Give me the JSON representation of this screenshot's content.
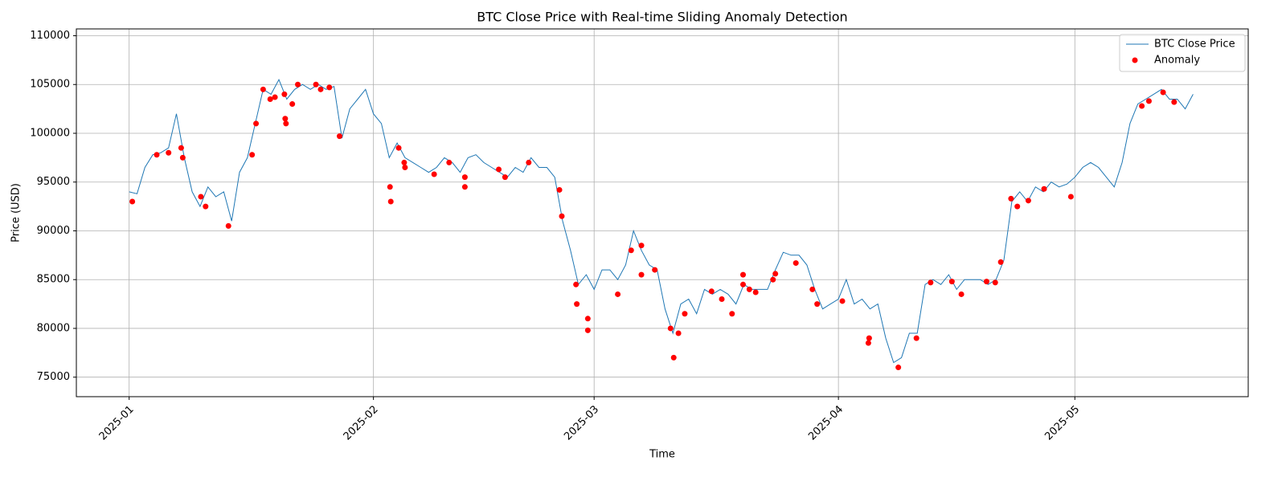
{
  "chart_data": {
    "type": "line",
    "title": "BTC Close Price with Real-time Sliding Anomaly Detection",
    "x_label": "Time",
    "y_label": "Price (USD)",
    "xlim": [
      -6.7,
      142
    ],
    "ylim": [
      73000,
      110700
    ],
    "xticks": [
      {
        "value": 0,
        "label": "2025-01"
      },
      {
        "value": 31,
        "label": "2025-02"
      },
      {
        "value": 59,
        "label": "2025-03"
      },
      {
        "value": 90,
        "label": "2025-04"
      },
      {
        "value": 120,
        "label": "2025-05"
      }
    ],
    "yticks": [
      75000,
      80000,
      85000,
      90000,
      95000,
      100000,
      105000,
      110000
    ],
    "grid": true,
    "legend": "upper right",
    "series": [
      {
        "name": "BTC Close Price",
        "type": "line",
        "color": "#1f77b4",
        "x": [
          0,
          1,
          2,
          3,
          4,
          5,
          6,
          7,
          8,
          9,
          10,
          11,
          12,
          13,
          14,
          15,
          16,
          17,
          18,
          19,
          20,
          21,
          22,
          23,
          24,
          25,
          26,
          27,
          28,
          29,
          30,
          31,
          32,
          33,
          34,
          35,
          36,
          37,
          38,
          39,
          40,
          41,
          42,
          43,
          44,
          45,
          46,
          47,
          48,
          49,
          50,
          51,
          52,
          53,
          54,
          55,
          56,
          57,
          58,
          59,
          60,
          61,
          62,
          63,
          64,
          65,
          66,
          67,
          68,
          69,
          70,
          71,
          72,
          73,
          74,
          75,
          76,
          77,
          78,
          79,
          80,
          81,
          82,
          83,
          84,
          85,
          86,
          87,
          88,
          89,
          90,
          91,
          92,
          93,
          94,
          95,
          96,
          97,
          98,
          99,
          100,
          101,
          102,
          103,
          104,
          105,
          106,
          107,
          108,
          109,
          110,
          111,
          112,
          113,
          114,
          115,
          116,
          117,
          118,
          119,
          120,
          121,
          122,
          123,
          124,
          125,
          126,
          127,
          128,
          129,
          130,
          131,
          132,
          133,
          134,
          135
        ],
        "values": [
          94000,
          93800,
          96500,
          97800,
          98000,
          98500,
          102000,
          97500,
          94000,
          92500,
          94500,
          93500,
          94000,
          91000,
          96000,
          97500,
          101000,
          104500,
          104000,
          105500,
          103500,
          104500,
          105000,
          104500,
          105000,
          104500,
          104800,
          99500,
          102500,
          103500,
          104500,
          102000,
          101000,
          97500,
          99000,
          97500,
          97000,
          96500,
          96000,
          96500,
          97500,
          97000,
          96000,
          97500,
          97800,
          97000,
          96500,
          96000,
          95500,
          96500,
          96000,
          97500,
          96500,
          96500,
          95500,
          91000,
          88000,
          84500,
          85500,
          84000,
          86000,
          86000,
          85000,
          86500,
          90000,
          88000,
          86500,
          86000,
          82000,
          79500,
          82500,
          83000,
          81500,
          84000,
          83500,
          84000,
          83500,
          82500,
          84500,
          84000,
          84000,
          84000,
          86000,
          87800,
          87500,
          87500,
          86500,
          84000,
          82000,
          82500,
          83000,
          85000,
          82500,
          83000,
          82000,
          82500,
          79000,
          76500,
          77000,
          79500,
          79500,
          84500,
          85000,
          84500,
          85500,
          84000,
          85000,
          85000,
          85000,
          84500,
          85000,
          87000,
          93000,
          94000,
          93000,
          94500,
          94000,
          95000,
          94500,
          94800,
          95500,
          96500,
          97000,
          96500,
          95500,
          94500,
          97000,
          101000,
          103000,
          103500,
          104000,
          104500,
          103500,
          103500,
          102500,
          104000
        ]
      },
      {
        "name": "Anomaly",
        "type": "scatter",
        "color": "#ff0000",
        "x": [
          0.4,
          3.5,
          5,
          6.6,
          6.8,
          9.1,
          9.7,
          12.6,
          15.6,
          16.1,
          17,
          17.9,
          18.5,
          19.7,
          19.8,
          19.9,
          20.7,
          21.4,
          23.7,
          24.3,
          25.4,
          26.7,
          33.1,
          33.2,
          34.2,
          34.9,
          35,
          38.7,
          40.6,
          42.6,
          42.6,
          46.9,
          47.7,
          50.7,
          54.6,
          54.9,
          56.7,
          56.8,
          58.2,
          58.2,
          62,
          63.7,
          65,
          65,
          66.7,
          68.7,
          69.1,
          69.7,
          70.5,
          73.9,
          75.2,
          76.5,
          77.9,
          77.9,
          78.7,
          79.5,
          81.7,
          82,
          84.6,
          86.7,
          87.3,
          90.5,
          93.8,
          93.9,
          97.6,
          99.9,
          101.7,
          104.4,
          105.6,
          108.8,
          109.9,
          110.6,
          111.9,
          112.7,
          114.1,
          116.1,
          119.5,
          128.5,
          129.4,
          131.2,
          132.6
        ],
        "values": [
          93000,
          97800,
          98000,
          98500,
          97500,
          93500,
          92500,
          90500,
          97800,
          101000,
          104500,
          103500,
          103700,
          104000,
          101500,
          101000,
          103000,
          105000,
          105000,
          104500,
          104700,
          99700,
          94500,
          93000,
          98500,
          97000,
          96500,
          95800,
          97000,
          95500,
          94500,
          96300,
          95500,
          97000,
          94200,
          91500,
          84500,
          82500,
          81000,
          79800,
          83500,
          88000,
          88500,
          85500,
          86000,
          80000,
          77000,
          79500,
          81500,
          83800,
          83000,
          81500,
          85500,
          84500,
          84000,
          83700,
          85000,
          85600,
          86700,
          84000,
          82500,
          82800,
          78500,
          79000,
          76000,
          79000,
          84700,
          84800,
          83500,
          84800,
          84700,
          86800,
          93300,
          92500,
          93100,
          94300,
          93500,
          102800,
          103300,
          104200,
          103200
        ]
      }
    ]
  }
}
